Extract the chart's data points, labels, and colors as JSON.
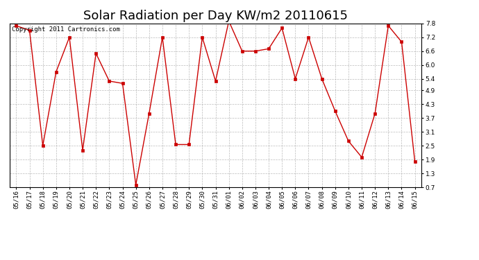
{
  "title": "Solar Radiation per Day KW/m2 20110615",
  "copyright_text": "Copyright 2011 Cartronics.com",
  "dates": [
    "05/16",
    "05/17",
    "05/18",
    "05/19",
    "05/20",
    "05/21",
    "05/22",
    "05/23",
    "05/24",
    "05/25",
    "05/26",
    "05/27",
    "05/28",
    "05/29",
    "05/30",
    "05/31",
    "06/01",
    "06/02",
    "06/03",
    "06/04",
    "06/05",
    "06/06",
    "06/07",
    "06/08",
    "06/09",
    "06/10",
    "06/11",
    "06/12",
    "06/13",
    "06/14",
    "06/15"
  ],
  "values": [
    7.7,
    7.5,
    2.5,
    5.7,
    7.2,
    2.3,
    6.5,
    5.3,
    5.2,
    0.8,
    3.9,
    7.2,
    2.55,
    2.55,
    7.2,
    5.3,
    7.9,
    6.6,
    6.6,
    6.7,
    7.6,
    5.4,
    7.2,
    5.4,
    4.0,
    2.7,
    2.0,
    3.9,
    7.7,
    7.0,
    1.8
  ],
  "line_color": "#cc0000",
  "marker_color": "#cc0000",
  "bg_color": "#ffffff",
  "plot_bg_color": "#ffffff",
  "grid_color": "#aaaaaa",
  "yticks": [
    0.7,
    1.3,
    1.9,
    2.5,
    3.1,
    3.7,
    4.3,
    4.9,
    5.4,
    6.0,
    6.6,
    7.2,
    7.8
  ],
  "ylim": [
    0.7,
    7.8
  ],
  "title_fontsize": 13,
  "tick_fontsize": 6.5,
  "copyright_fontsize": 6.5
}
